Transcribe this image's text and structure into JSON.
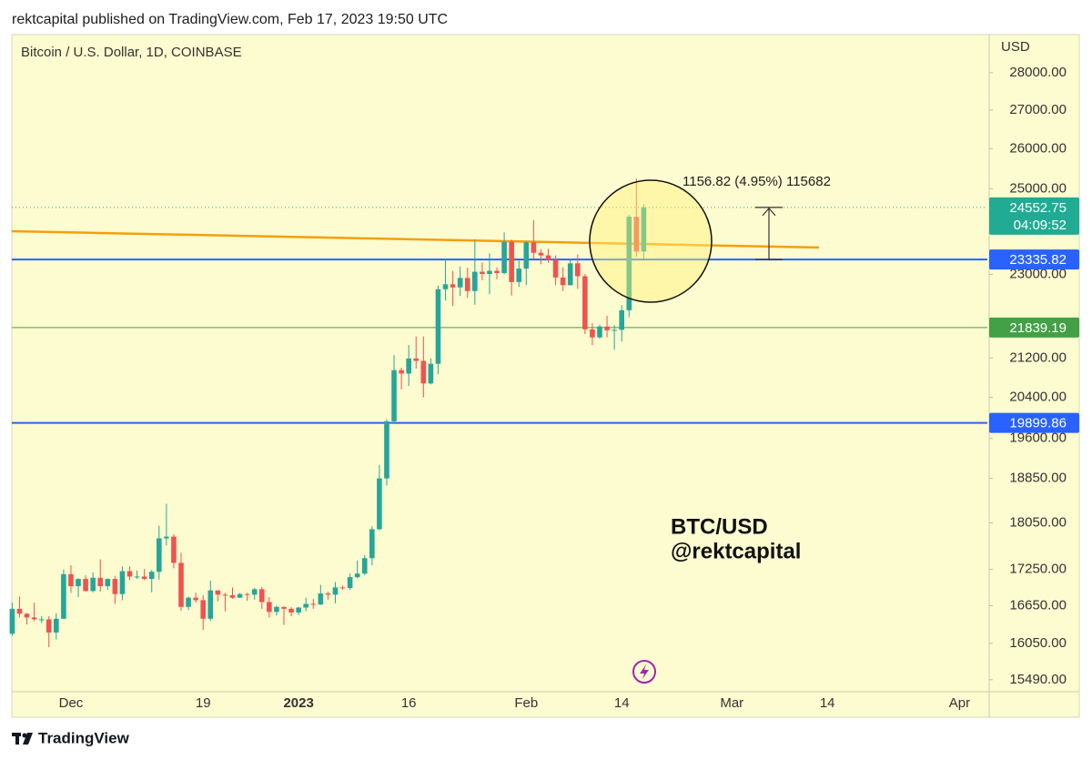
{
  "header": {
    "publisher": "rektcapital published on TradingView.com, Feb 17, 2023 19:50 UTC"
  },
  "footer": {
    "brand": "TradingView"
  },
  "chart_data": {
    "type": "candlestick",
    "subtitle": "Bitcoin / U.S. Dollar, 1D, COINBASE",
    "y_axis_label": "USD",
    "log_scale": true,
    "up_color": "#26a69a",
    "down_color": "#ef5350",
    "background": "#fdfbd0",
    "ylim": [
      15310,
      29060
    ],
    "yticks": [
      {
        "value": 28000,
        "label": "28000.00"
      },
      {
        "value": 27000,
        "label": "27000.00"
      },
      {
        "value": 26000,
        "label": "26000.00"
      },
      {
        "value": 25000,
        "label": "25000.00"
      },
      {
        "value": 23000,
        "label": "23000.00"
      },
      {
        "value": 21200,
        "label": "21200.00"
      },
      {
        "value": 20400,
        "label": "20400.00"
      },
      {
        "value": 19600,
        "label": "19600.00"
      },
      {
        "value": 18850,
        "label": "18850.00"
      },
      {
        "value": 18050,
        "label": "18050.00"
      },
      {
        "value": 17250,
        "label": "17250.00"
      },
      {
        "value": 16650,
        "label": "16650.00"
      },
      {
        "value": 16050,
        "label": "16050.00"
      },
      {
        "value": 15490,
        "label": "15490.00"
      }
    ],
    "categories": [
      null,
      null,
      null,
      null,
      null,
      null,
      null,
      null,
      "Dec",
      null,
      null,
      null,
      null,
      null,
      null,
      null,
      null,
      null,
      null,
      null,
      null,
      null,
      null,
      null,
      null,
      null,
      "19",
      null,
      null,
      null,
      null,
      null,
      null,
      null,
      null,
      null,
      null,
      null,
      null,
      "2023",
      null,
      null,
      null,
      null,
      null,
      null,
      null,
      null,
      null,
      null,
      null,
      null,
      null,
      null,
      "16",
      null,
      null,
      null,
      null,
      null,
      null,
      null,
      null,
      null,
      null,
      null,
      null,
      null,
      null,
      null,
      "Feb",
      null,
      null,
      null,
      null,
      null,
      null,
      null,
      null,
      null,
      null,
      null,
      null,
      "14",
      null,
      null,
      null,
      null,
      null,
      null,
      null,
      null,
      null,
      null,
      null,
      null,
      null,
      null,
      "Mar",
      null,
      null,
      null,
      null,
      null,
      null,
      null,
      null,
      null,
      null,
      null,
      null,
      "14",
      null,
      null,
      null,
      null,
      null,
      null,
      null,
      null,
      null,
      null,
      null,
      null,
      null,
      null,
      null,
      null,
      null,
      "Apr",
      null,
      null
    ],
    "open": [
      16200,
      16600,
      16520,
      16460,
      16430,
      16430,
      16220,
      16440,
      17170,
      16970,
      17090,
      16890,
      17110,
      16970,
      17090,
      16840,
      17220,
      17130,
      17130,
      17090,
      17210,
      17780,
      17810,
      17360,
      16630,
      16780,
      16740,
      16440,
      16900,
      16830,
      16820,
      16780,
      16840,
      16830,
      16920,
      16710,
      16550,
      16630,
      16600,
      16540,
      16620,
      16680,
      16670,
      16850,
      16830,
      16950,
      16940,
      17120,
      17180,
      17440,
      17940,
      18850,
      19930,
      20950,
      20880,
      21190,
      21140,
      20680,
      21080,
      22670,
      22780,
      22710,
      22920,
      22630,
      23060,
      23010,
      23080,
      23030,
      23740,
      22830,
      23130,
      23730,
      23490,
      23430,
      23330,
      22930,
      22760,
      23250,
      22960,
      21800,
      21630,
      21860,
      21780,
      21790,
      22210,
      24330,
      23520,
      null,
      null,
      null,
      null,
      null,
      null,
      null,
      null,
      null,
      null,
      null,
      null,
      null,
      null,
      null,
      null,
      null,
      null,
      null,
      null,
      null,
      null,
      null,
      null,
      null,
      null,
      null,
      null,
      null,
      null,
      null,
      null,
      null,
      null,
      null,
      null,
      null,
      null,
      null,
      null,
      null,
      null,
      null,
      null,
      null
    ],
    "high": [
      16700,
      16800,
      16530,
      16700,
      16480,
      16480,
      16530,
      17250,
      17320,
      17100,
      17150,
      17200,
      17420,
      17100,
      17140,
      17300,
      17300,
      17230,
      17260,
      17240,
      18000,
      18390,
      17850,
      17530,
      16800,
      16860,
      16820,
      17060,
      16900,
      16860,
      16950,
      16860,
      16860,
      16940,
      16960,
      16790,
      16650,
      16640,
      16630,
      16630,
      16780,
      16760,
      16990,
      16880,
      17040,
      16980,
      17180,
      17400,
      17490,
      17990,
      19100,
      19970,
      21260,
      21000,
      21470,
      21650,
      21650,
      21190,
      22750,
      23350,
      23080,
      23180,
      23150,
      23800,
      23270,
      23480,
      23160,
      23960,
      23790,
      23310,
      23760,
      24250,
      23580,
      23580,
      23430,
      23160,
      23360,
      23450,
      23010,
      21930,
      21900,
      22090,
      21890,
      22320,
      24380,
      25250,
      24630,
      null,
      null,
      null,
      null,
      null,
      null,
      null,
      null,
      null,
      null,
      null,
      null,
      null,
      null,
      null,
      null,
      null,
      null,
      null,
      null,
      null,
      null,
      null,
      null,
      null,
      null,
      null,
      null,
      null,
      null,
      null,
      null,
      null,
      null,
      null,
      null,
      null,
      null,
      null,
      null,
      null,
      null,
      null,
      null,
      null
    ],
    "low": [
      16170,
      16460,
      16350,
      16400,
      16370,
      15990,
      16110,
      16430,
      16860,
      16790,
      16880,
      16870,
      16880,
      16910,
      16680,
      16740,
      17070,
      17090,
      17070,
      16870,
      17080,
      17660,
      17270,
      16570,
      16580,
      16700,
      16260,
      16400,
      16720,
      16560,
      16760,
      16780,
      16730,
      16750,
      16600,
      16460,
      16490,
      16340,
      16480,
      16500,
      16560,
      16600,
      16660,
      16750,
      16690,
      16910,
      16910,
      17100,
      17150,
      17320,
      17920,
      18720,
      19890,
      20560,
      20630,
      20980,
      20400,
      20660,
      20870,
      22420,
      22300,
      22520,
      22480,
      22330,
      22870,
      22560,
      22890,
      23000,
      22530,
      22720,
      22760,
      23360,
      23230,
      23260,
      22760,
      22630,
      22750,
      22680,
      21700,
      21470,
      21600,
      21630,
      21370,
      21540,
      22060,
      23400,
      23350,
      null,
      null,
      null,
      null,
      null,
      null,
      null,
      null,
      null,
      null,
      null,
      null,
      null,
      null,
      null,
      null,
      null,
      null,
      null,
      null,
      null,
      null,
      null,
      null,
      null,
      null,
      null,
      null,
      null,
      null,
      null,
      null,
      null,
      null,
      null,
      null,
      null,
      null,
      null,
      null,
      null,
      null,
      null,
      null,
      null
    ],
    "close": [
      16600,
      16520,
      16460,
      16430,
      16430,
      16220,
      16440,
      17170,
      16970,
      17090,
      16890,
      17110,
      16970,
      17090,
      16840,
      17220,
      17130,
      17130,
      17090,
      17210,
      17780,
      17810,
      17360,
      16630,
      16780,
      16740,
      16440,
      16900,
      16830,
      16820,
      16780,
      16840,
      16830,
      16920,
      16710,
      16550,
      16630,
      16600,
      16540,
      16620,
      16680,
      16670,
      16850,
      16830,
      16950,
      16940,
      17120,
      17180,
      17440,
      17940,
      18850,
      19930,
      20950,
      20880,
      21190,
      21140,
      20680,
      21080,
      22670,
      22780,
      22710,
      22920,
      22630,
      23060,
      23010,
      23080,
      23030,
      23740,
      22830,
      23130,
      23730,
      23490,
      23430,
      23330,
      22930,
      22760,
      23250,
      22960,
      21800,
      21630,
      21860,
      21780,
      21790,
      22210,
      24330,
      23520,
      24552.75,
      null,
      null,
      null,
      null,
      null,
      null,
      null,
      null,
      null,
      null,
      null,
      null,
      null,
      null,
      null,
      null,
      null,
      null,
      null,
      null,
      null,
      null,
      null,
      null,
      null,
      null,
      null,
      null,
      null,
      null,
      null,
      null,
      null,
      null,
      null,
      null,
      null,
      null,
      null,
      null,
      null,
      null,
      null,
      null,
      null
    ],
    "last_price_color": "#22ab94",
    "countdown": "04:09:52",
    "levels": [
      {
        "value": 23335.82,
        "color": "#2962ff"
      },
      {
        "value": 21839.19,
        "color": "#43a047"
      },
      {
        "value": 19899.86,
        "color": "#2962ff"
      }
    ],
    "trendline": {
      "color": "#f59f0b",
      "start_value": 23990,
      "end_value": 23610
    },
    "measure_label": "1156.82 (4.95%) 115682",
    "watermark": [
      "BTC/USD",
      "@rektcapital"
    ]
  }
}
